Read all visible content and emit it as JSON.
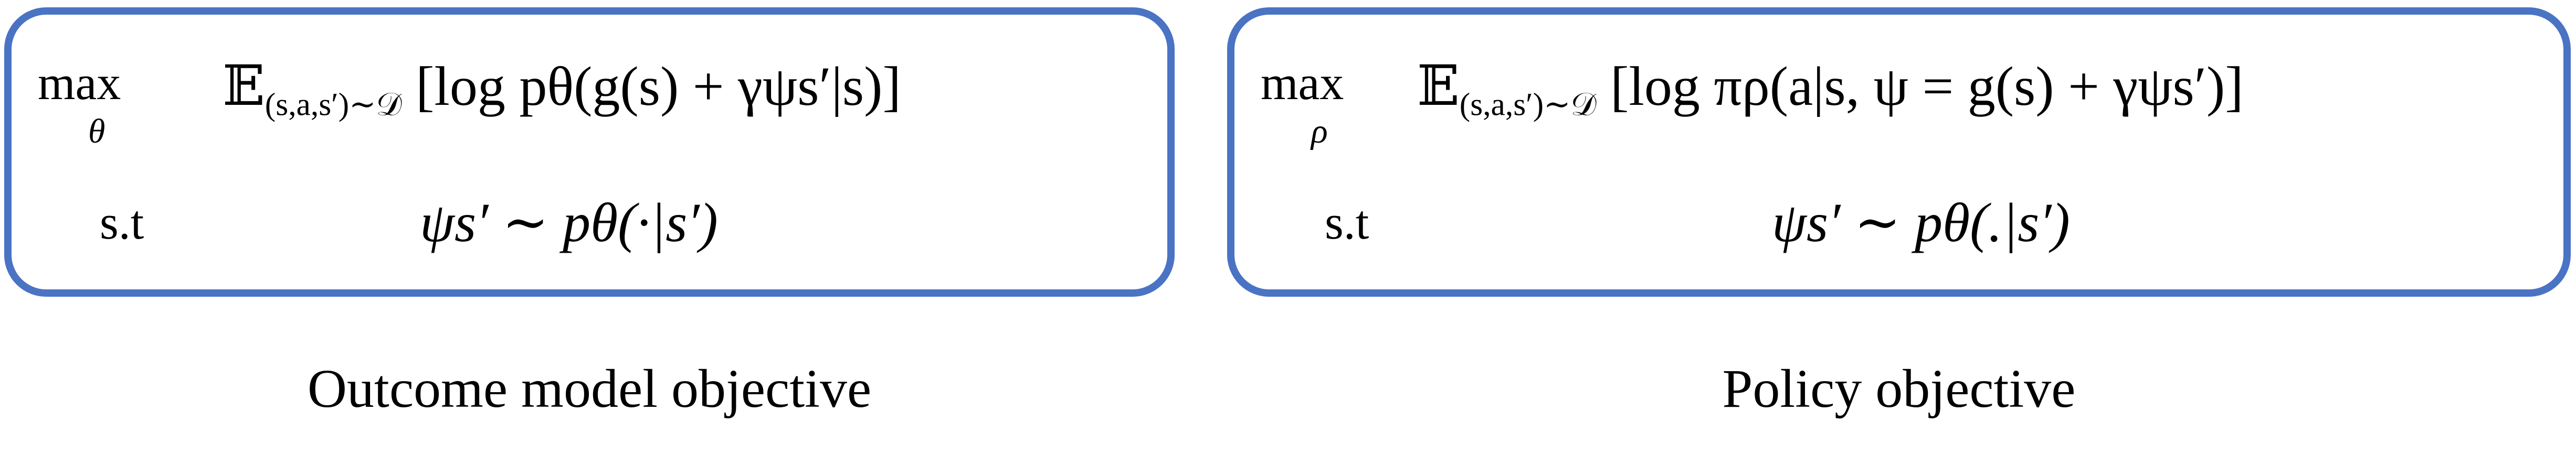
{
  "panels": [
    {
      "operator": "max",
      "operator_sub": "θ",
      "objective": "𝔼(s,a,s′)∼𝒟 [log pθ(g(s) + γψs′|s)]",
      "objective_parts": {
        "E": "𝔼",
        "E_sub": "(s,a,s′)∼𝒟",
        "body": "[log pθ(g(s) + γψs′|s)]"
      },
      "constraint_label": "s.t",
      "constraint": "ψs′ ∼ pθ(·|s′)",
      "caption": "Outcome model objective"
    },
    {
      "operator": "max",
      "operator_sub": "ρ",
      "objective": "𝔼(s,a,s′)∼𝒟 [log πρ(a|s, ψ = g(s) + γψs′)]",
      "objective_parts": {
        "E": "𝔼",
        "E_sub": "(s,a,s′)∼𝒟",
        "body": "[log πρ(a|s, ψ = g(s) + γψs′)]"
      },
      "constraint_label": "s.t",
      "constraint": "ψs′ ∼ pθ(.|s′)",
      "caption": "Policy objective"
    }
  ],
  "colors": {
    "panel_border": "#4a73c4",
    "text": "#000000",
    "background": "#ffffff"
  }
}
